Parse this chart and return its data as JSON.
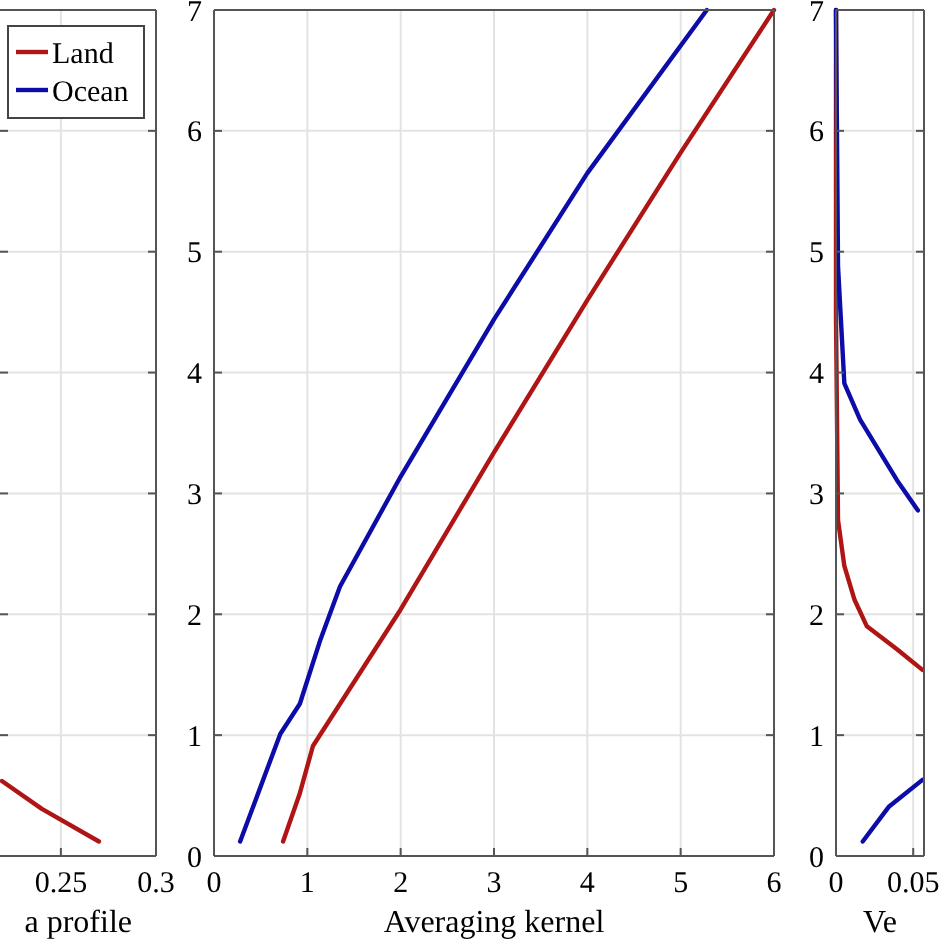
{
  "chart_data": [
    {
      "type": "line",
      "xlabel": "a profile",
      "xlim": [
        0.218,
        0.3
      ],
      "xticks": [
        0.25,
        0.3
      ],
      "ylim": [
        0,
        7
      ],
      "yticks": [
        0,
        1,
        2,
        3,
        4,
        5,
        6,
        7
      ],
      "grid": true,
      "tick_labels": "x",
      "legend": "top right",
      "line_style": "solid",
      "series": [
        {
          "name": "Land",
          "color": "#b01515",
          "x": [
            0.219,
            0.24,
            0.27
          ],
          "values": [
            0.62,
            0.39,
            0.12
          ]
        },
        {
          "name": "Ocean",
          "color": "#0c0ca8"
        }
      ]
    },
    {
      "type": "line",
      "xlabel": "Averaging kernel",
      "xlim": [
        0,
        6
      ],
      "xticks": [
        0,
        1,
        2,
        3,
        4,
        5,
        6
      ],
      "ylim": [
        0,
        7
      ],
      "yticks": [
        0,
        1,
        2,
        3,
        4,
        5,
        6,
        7
      ],
      "grid": true,
      "line_style": "solid",
      "series": [
        {
          "color": "#b01515",
          "x": [
            0.74,
            0.92,
            1.06,
            2,
            3,
            4,
            5,
            6
          ],
          "values": [
            0.12,
            0.52,
            0.91,
            2.04,
            3.34,
            4.6,
            5.82,
            7
          ]
        },
        {
          "color": "#0c0ca8",
          "x": [
            0.28,
            0.71,
            0.92,
            1.14,
            1.35,
            2,
            3,
            4,
            5.28
          ],
          "values": [
            0.12,
            1.01,
            1.26,
            1.79,
            2.23,
            3.14,
            4.44,
            5.65,
            7
          ]
        }
      ]
    },
    {
      "type": "line",
      "xlabel": "Ve",
      "xlim": [
        0,
        0.057
      ],
      "xticks": [
        0,
        0.05
      ],
      "ylim": [
        0,
        7
      ],
      "yticks": [
        0,
        1,
        2,
        3,
        4,
        5,
        6,
        7
      ],
      "grid": true,
      "line_style": "solid",
      "series": [
        {
          "color": "#b01515",
          "x": [
            0,
            0,
            0.0013,
            0.0054,
            0.012,
            0.02,
            0.0395,
            0.056
          ],
          "values": [
            7,
            4.46,
            2.78,
            2.4,
            2.12,
            1.9,
            1.71,
            1.54
          ]
        },
        {
          "color": "#0c0ca8",
          "x": [
            0,
            0.0013,
            0.0054,
            0.0156,
            0.0395,
            0.053,
            null,
            0.056,
            0.0344,
            0.0173
          ],
          "values": [
            7,
            4.88,
            3.91,
            3.61,
            3.11,
            2.86,
            null,
            0.63,
            0.41,
            0.12
          ]
        }
      ]
    }
  ]
}
